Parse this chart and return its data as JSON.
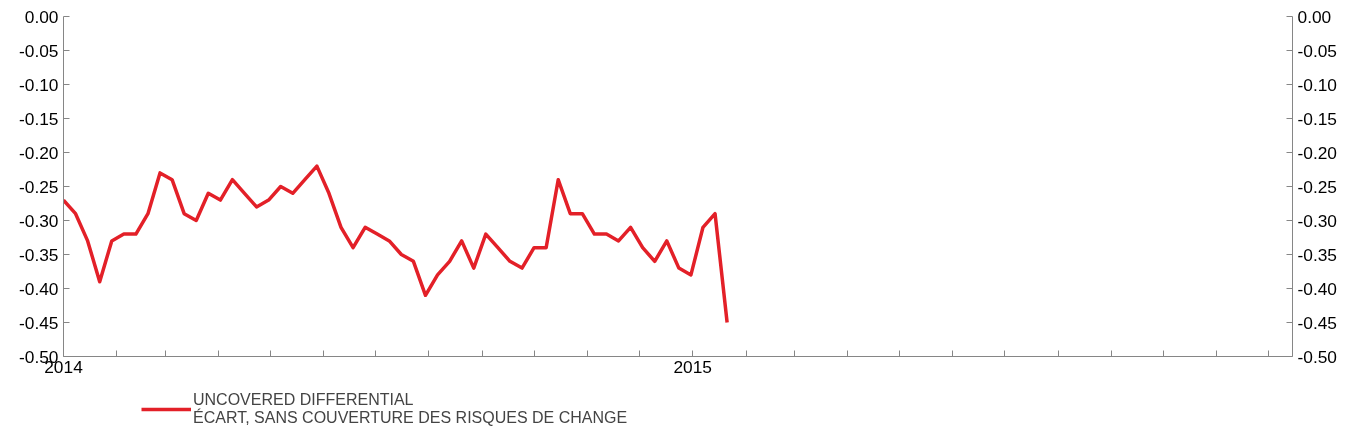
{
  "chart_data": {
    "type": "line",
    "x": [
      "2014-01-01",
      "2014-01-08",
      "2014-01-15",
      "2014-01-22",
      "2014-01-29",
      "2014-02-05",
      "2014-02-12",
      "2014-02-19",
      "2014-02-26",
      "2014-03-05",
      "2014-03-12",
      "2014-03-19",
      "2014-03-26",
      "2014-04-02",
      "2014-04-09",
      "2014-04-16",
      "2014-04-23",
      "2014-04-30",
      "2014-05-07",
      "2014-05-14",
      "2014-05-21",
      "2014-05-28",
      "2014-06-04",
      "2014-06-11",
      "2014-06-18",
      "2014-06-25",
      "2014-07-02",
      "2014-07-09",
      "2014-07-16",
      "2014-07-23",
      "2014-07-30",
      "2014-08-06",
      "2014-08-13",
      "2014-08-20",
      "2014-08-27",
      "2014-09-03",
      "2014-09-10",
      "2014-09-17",
      "2014-09-24",
      "2014-10-01",
      "2014-10-08",
      "2014-10-15",
      "2014-10-22",
      "2014-10-29",
      "2014-11-05",
      "2014-11-12",
      "2014-11-19",
      "2014-11-26",
      "2014-12-03",
      "2014-12-10",
      "2014-12-17",
      "2014-12-24",
      "2014-12-31",
      "2015-01-07",
      "2015-01-14",
      "2015-01-21"
    ],
    "series": [
      {
        "name": "UNCOVERED DIFFERENTIAL\nÉCART, SANS COUVERTURE DES RISQUES DE CHANGE",
        "color": "#e32028",
        "values": [
          -0.27,
          -0.29,
          -0.33,
          -0.39,
          -0.33,
          -0.32,
          -0.32,
          -0.29,
          -0.23,
          -0.24,
          -0.29,
          -0.3,
          -0.26,
          -0.27,
          -0.24,
          -0.26,
          -0.28,
          -0.27,
          -0.25,
          -0.26,
          -0.24,
          -0.22,
          -0.26,
          -0.31,
          -0.34,
          -0.31,
          -0.32,
          -0.33,
          -0.35,
          -0.36,
          -0.41,
          -0.38,
          -0.36,
          -0.33,
          -0.37,
          -0.32,
          -0.34,
          -0.36,
          -0.37,
          -0.34,
          -0.34,
          -0.24,
          -0.29,
          -0.29,
          -0.32,
          -0.32,
          -0.33,
          -0.31,
          -0.34,
          -0.36,
          -0.33,
          -0.37,
          -0.38,
          -0.31,
          -0.29,
          -0.45
        ]
      }
    ],
    "xlim": [
      "2014-01-01",
      "2015-12-15"
    ],
    "xticks": [
      {
        "value": "2014-01",
        "label": "2014"
      },
      {
        "value": "2014-02",
        "label": null
      },
      {
        "value": "2014-03",
        "label": null
      },
      {
        "value": "2014-04",
        "label": null
      },
      {
        "value": "2014-05",
        "label": null
      },
      {
        "value": "2014-06",
        "label": null
      },
      {
        "value": "2014-07",
        "label": null
      },
      {
        "value": "2014-08",
        "label": null
      },
      {
        "value": "2014-09",
        "label": null
      },
      {
        "value": "2014-10",
        "label": null
      },
      {
        "value": "2014-11",
        "label": null
      },
      {
        "value": "2014-12",
        "label": null
      },
      {
        "value": "2015-01",
        "label": "2015"
      },
      {
        "value": "2015-02",
        "label": null
      },
      {
        "value": "2015-03",
        "label": null
      },
      {
        "value": "2015-04",
        "label": null
      },
      {
        "value": "2015-05",
        "label": null
      },
      {
        "value": "2015-06",
        "label": null
      },
      {
        "value": "2015-07",
        "label": null
      },
      {
        "value": "2015-08",
        "label": null
      },
      {
        "value": "2015-09",
        "label": null
      },
      {
        "value": "2015-10",
        "label": null
      },
      {
        "value": "2015-11",
        "label": null
      },
      {
        "value": "2015-12",
        "label": null
      }
    ],
    "ylim": [
      -0.5,
      0
    ],
    "yticks": [
      {
        "value": 0,
        "label": "0.00"
      },
      {
        "value": -0.05,
        "label": "-0.05"
      },
      {
        "value": -0.1,
        "label": "-0.10"
      },
      {
        "value": -0.15,
        "label": "-0.15"
      },
      {
        "value": -0.2,
        "label": "-0.20"
      },
      {
        "value": -0.25,
        "label": "-0.25"
      },
      {
        "value": -0.3,
        "label": "-0.30"
      },
      {
        "value": -0.35,
        "label": "-0.35"
      },
      {
        "value": -0.4,
        "label": "-0.40"
      },
      {
        "value": -0.45,
        "label": "-0.45"
      },
      {
        "value": -0.5,
        "label": "-0.50"
      }
    ],
    "y2lim": [
      -0.5,
      0
    ],
    "y2ticks": [
      {
        "value": 0,
        "label": "0.00"
      },
      {
        "value": -0.05,
        "label": "-0.05"
      },
      {
        "value": -0.1,
        "label": "-0.10"
      },
      {
        "value": -0.15,
        "label": "-0.15"
      },
      {
        "value": -0.2,
        "label": "-0.20"
      },
      {
        "value": -0.25,
        "label": "-0.25"
      },
      {
        "value": -0.3,
        "label": "-0.30"
      },
      {
        "value": -0.35,
        "label": "-0.35"
      },
      {
        "value": -0.4,
        "label": "-0.40"
      },
      {
        "value": -0.45,
        "label": "-0.45"
      },
      {
        "value": -0.5,
        "label": "-0.50"
      }
    ],
    "grid": false,
    "legend": "bottom left",
    "line_style": "solid",
    "marker": "none"
  }
}
